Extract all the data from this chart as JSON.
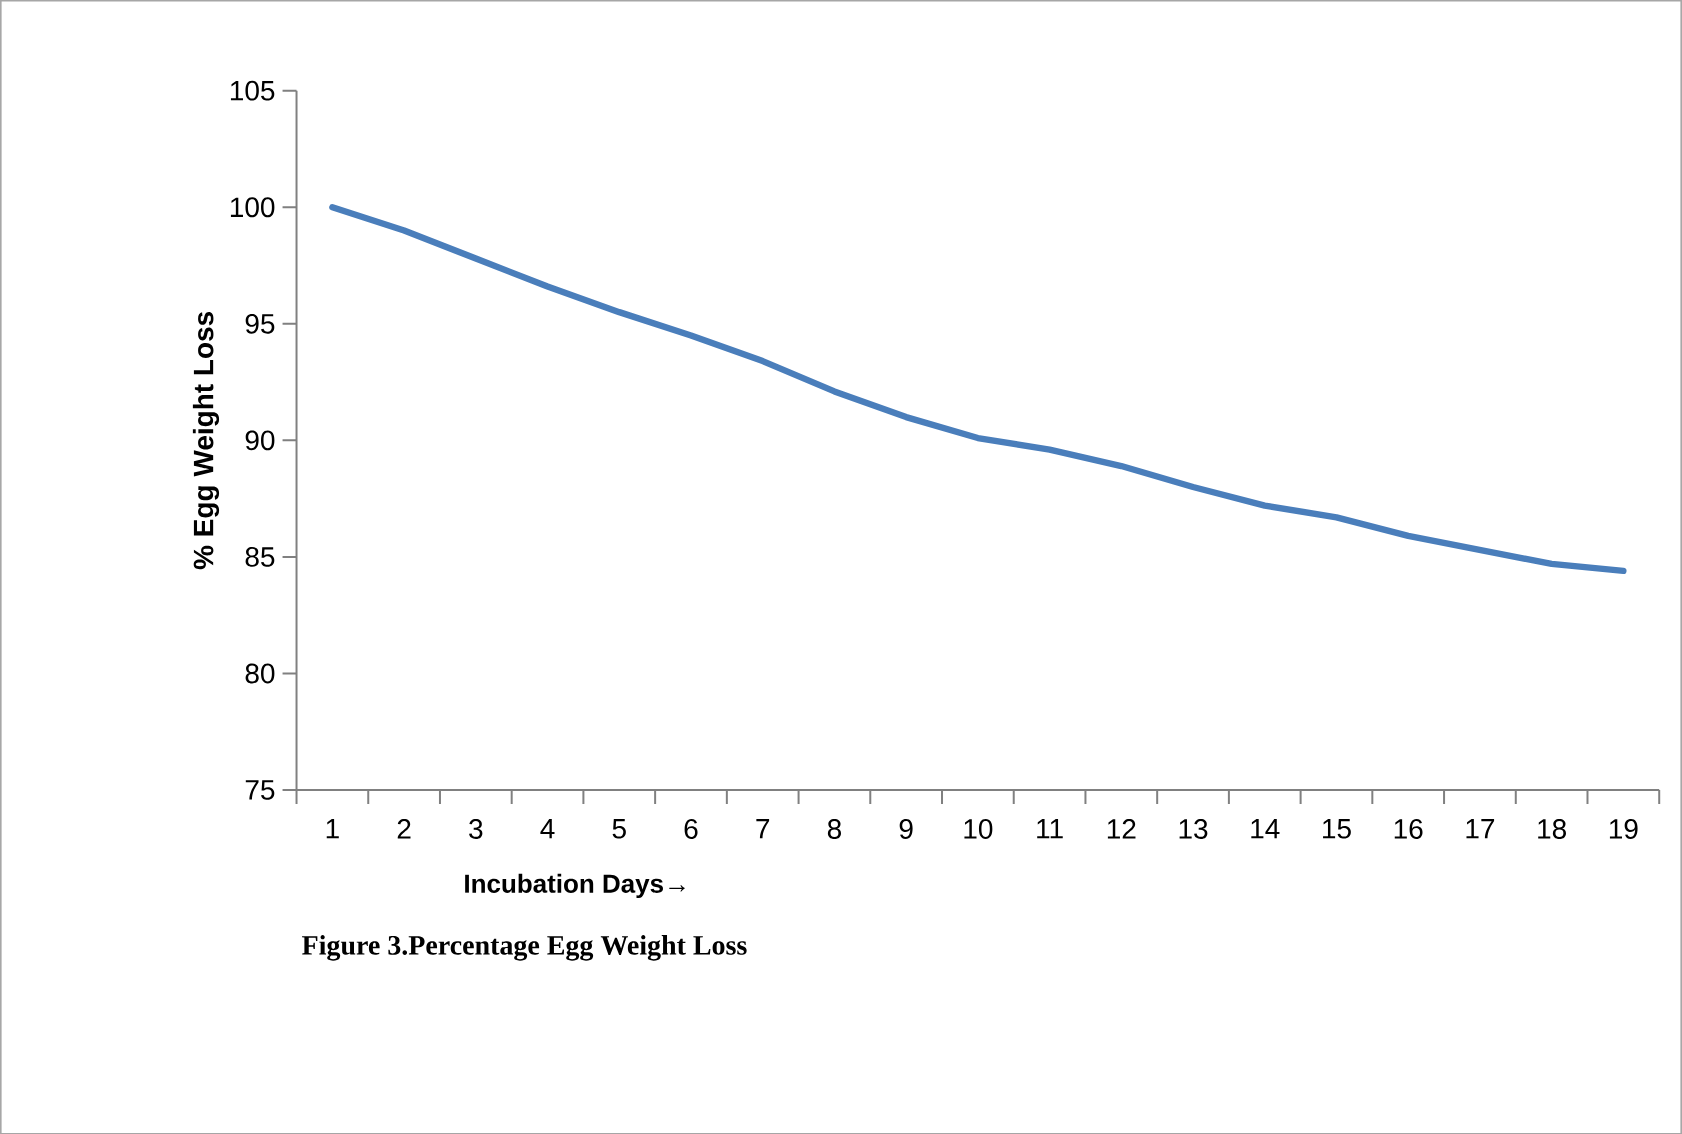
{
  "chart_data": {
    "type": "line",
    "categories": [
      "1",
      "2",
      "3",
      "4",
      "5",
      "6",
      "7",
      "8",
      "9",
      "10",
      "11",
      "12",
      "13",
      "14",
      "15",
      "16",
      "17",
      "18",
      "19"
    ],
    "series": [
      {
        "color": "#4a7ebb",
        "values": [
          100,
          99,
          97.8,
          96.6,
          95.5,
          94.5,
          93.4,
          92.1,
          91,
          90.1,
          89.6,
          88.9,
          88,
          87.2,
          86.7,
          85.9,
          85.3,
          84.7,
          84.4
        ]
      }
    ],
    "ylabel": "% Egg Weight Loss",
    "xlabel": "Incubation Days→",
    "annotations": [
      "Figure 3.Percentage Egg Weight  Loss"
    ],
    "ylim": [
      75,
      105
    ],
    "yticks": [
      75,
      80,
      85,
      90,
      95,
      100,
      105
    ],
    "grid": false,
    "legend": false
  }
}
